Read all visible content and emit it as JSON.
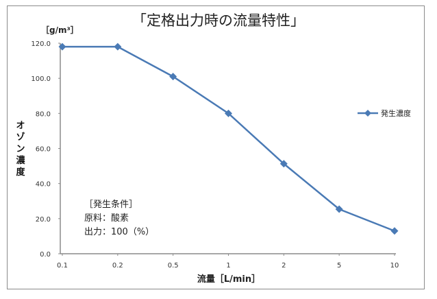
{
  "chart_data": {
    "type": "line",
    "title": "「定格出力時の流量特性」",
    "ylabel": "オゾン濃度",
    "yunit": "［g/m³］",
    "xlabel": "流量［L/min］",
    "categories": [
      "0.1",
      "0.2",
      "0.5",
      "1",
      "2",
      "5",
      "10"
    ],
    "series": [
      {
        "name": "発生濃度",
        "values": [
          118.0,
          118.0,
          101.0,
          80.0,
          51.3,
          25.4,
          13.0
        ],
        "color": "#4a7ab5",
        "marker": "diamond"
      }
    ],
    "yticks": [
      "0.0",
      "20.0",
      "40.0",
      "60.0",
      "80.0",
      "100.0",
      "120.0"
    ],
    "ylim": [
      0,
      120
    ],
    "grid": false,
    "legend": "right",
    "annotation": [
      "［発生条件］",
      "原料：酸素",
      "出力：100（%）"
    ]
  }
}
